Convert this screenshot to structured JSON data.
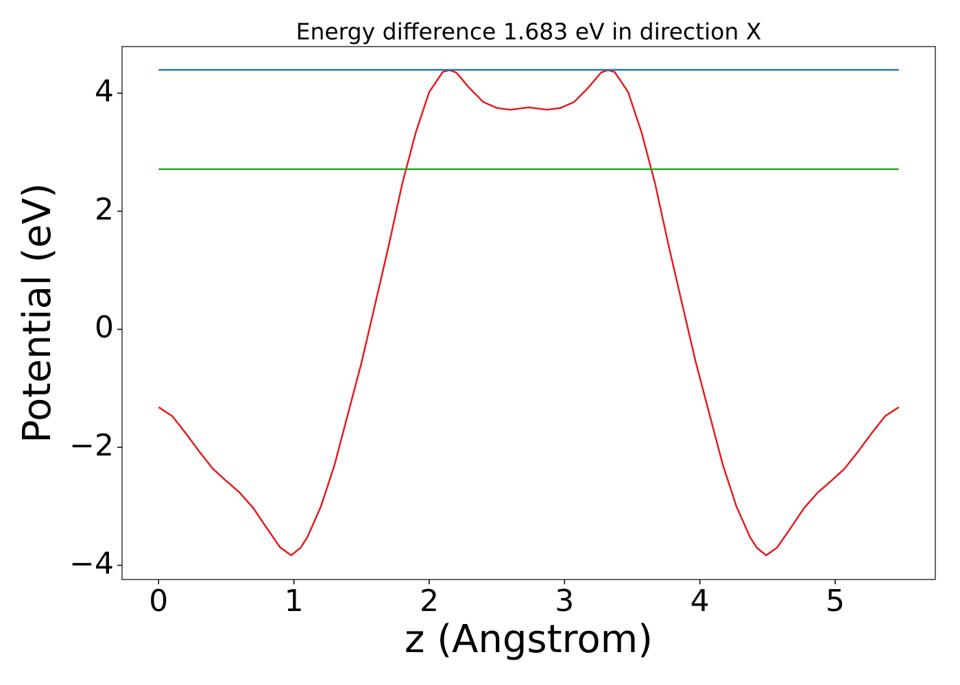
{
  "chart_data": {
    "type": "line",
    "title": "Energy difference 1.683 eV in direction X",
    "xlabel": "z (Angstrom)",
    "ylabel": "Potential (eV)",
    "xlim": [
      -0.27,
      5.74
    ],
    "ylim": [
      -4.24,
      4.79
    ],
    "xticks": [
      0,
      1,
      2,
      3,
      4,
      5
    ],
    "yticks": [
      {
        "value": -4,
        "label": "−4"
      },
      {
        "value": -2,
        "label": "−2"
      },
      0,
      2,
      4
    ],
    "series": [
      {
        "color": "#e41a1c",
        "x": [
          0,
          0.1,
          0.2,
          0.3,
          0.4,
          0.5,
          0.6,
          0.7,
          0.8,
          0.9,
          0.98,
          1.05,
          1.1,
          1.2,
          1.3,
          1.4,
          1.5,
          1.6,
          1.7,
          1.8,
          1.9,
          2.0,
          2.1,
          2.15,
          2.2,
          2.3,
          2.4,
          2.5,
          2.6,
          2.735,
          2.87,
          2.97,
          3.07,
          3.17,
          3.27,
          3.32,
          3.37,
          3.47,
          3.57,
          3.67,
          3.77,
          3.87,
          3.97,
          4.07,
          4.17,
          4.27,
          4.37,
          4.42,
          4.49,
          4.57,
          4.67,
          4.77,
          4.87,
          4.97,
          5.07,
          5.17,
          5.27,
          5.37,
          5.47
        ],
        "values": [
          -1.32,
          -1.47,
          -1.76,
          -2.07,
          -2.36,
          -2.57,
          -2.77,
          -3.03,
          -3.37,
          -3.7,
          -3.83,
          -3.7,
          -3.52,
          -3.0,
          -2.3,
          -1.43,
          -0.56,
          0.42,
          1.41,
          2.46,
          3.33,
          4.02,
          4.36,
          4.39,
          4.35,
          4.08,
          3.85,
          3.75,
          3.72,
          3.76,
          3.72,
          3.75,
          3.85,
          4.08,
          4.35,
          4.39,
          4.36,
          4.02,
          3.33,
          2.46,
          1.41,
          0.42,
          -0.56,
          -1.43,
          -2.3,
          -3.0,
          -3.52,
          -3.7,
          -3.83,
          -3.7,
          -3.37,
          -3.03,
          -2.77,
          -2.57,
          -2.36,
          -2.07,
          -1.76,
          -1.47,
          -1.32
        ]
      },
      {
        "color": "#1f77b4",
        "x": [
          0,
          5.47
        ],
        "values": [
          4.395,
          4.395
        ]
      },
      {
        "color": "#2ca02c",
        "x": [
          0,
          5.47
        ],
        "values": [
          2.712,
          2.712
        ]
      }
    ]
  }
}
